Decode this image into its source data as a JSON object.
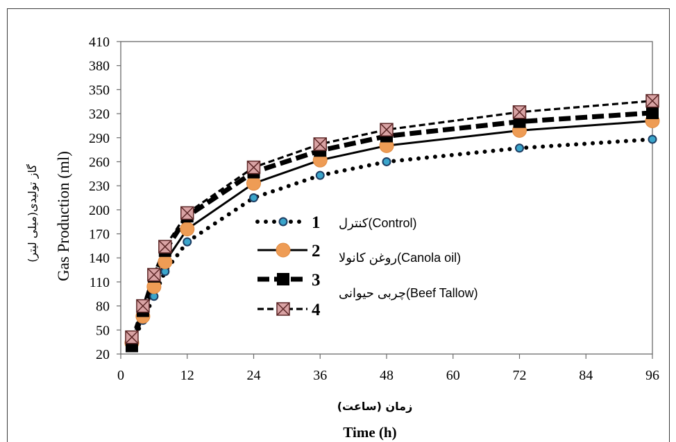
{
  "chart_data": {
    "type": "line",
    "x": [
      2,
      4,
      6,
      8,
      12,
      24,
      36,
      48,
      72,
      96
    ],
    "series": [
      {
        "name": "1",
        "values": [
          33,
          62,
          92,
          123,
          160,
          215,
          243,
          260,
          277,
          288
        ],
        "line_style": "dotted",
        "marker": "small-circle",
        "marker_color": "#3aa5cb",
        "marker_edge": "#1d3d63"
      },
      {
        "name": "2",
        "values": [
          34,
          67,
          104,
          135,
          176,
          233,
          262,
          280,
          299,
          311
        ],
        "line_style": "solid",
        "marker": "circle",
        "marker_color": "#ee9c55",
        "marker_edge": "#e0893e"
      },
      {
        "name": "3",
        "values": [
          30,
          74,
          117,
          149,
          192,
          247,
          274,
          292,
          310,
          321
        ],
        "line_style": "thick-dashed",
        "marker": "square",
        "marker_color": "#000000",
        "marker_edge": "#000000"
      },
      {
        "name": "4",
        "values": [
          41,
          80,
          119,
          154,
          196,
          253,
          282,
          300,
          322,
          336
        ],
        "line_style": "dashed",
        "marker": "x-square",
        "marker_color": "#d9a3a4",
        "marker_edge": "#5b2626"
      }
    ],
    "line_color": "#000000",
    "xlim": [
      0,
      96
    ],
    "ylim": [
      20,
      410
    ],
    "xticks": [
      0,
      12,
      24,
      36,
      48,
      60,
      72,
      84,
      96
    ],
    "yticks": [
      20,
      50,
      80,
      110,
      140,
      170,
      200,
      230,
      260,
      290,
      320,
      350,
      380,
      410
    ],
    "xlabel": "Time (h)",
    "xlabel_fa": "زمان (ساعت)",
    "ylabel": "Gas Production (ml)",
    "ylabel_fa": "گاز تولیدی(میلی لیتر)",
    "grid": false,
    "legend_position": "center",
    "legend_notes": [
      "کنترل(Control)",
      "روغن کانولا(Canola oil)",
      "چربی حیوانی(Beef Tallow)"
    ]
  }
}
